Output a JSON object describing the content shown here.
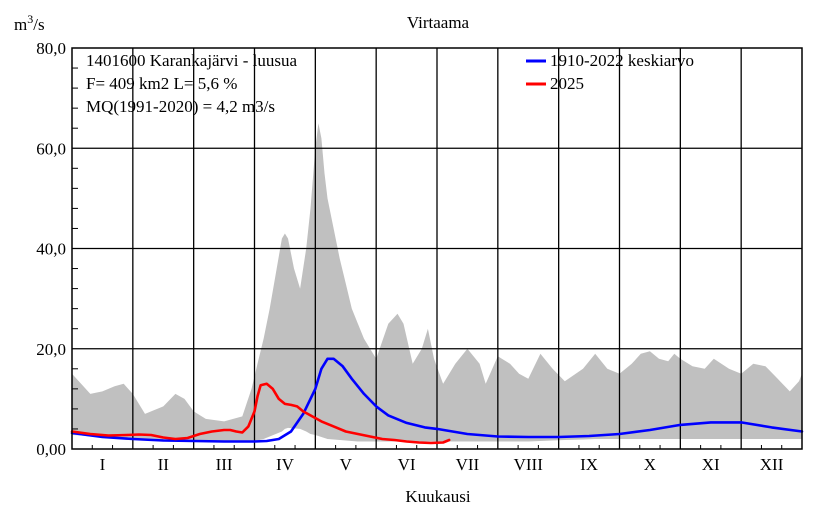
{
  "chart_data": {
    "type": "line",
    "title": "Virtaama",
    "ylabel": "m3/s",
    "xlabel": "Kuukausi",
    "ylim": [
      0,
      80
    ],
    "yticks": [
      0,
      20,
      40,
      60,
      80
    ],
    "ytick_labels": [
      "0,00",
      "20,0",
      "40,0",
      "60,0",
      "80,0"
    ],
    "x_unit": "month",
    "xlim": [
      0,
      12
    ],
    "months": [
      "I",
      "II",
      "III",
      "IV",
      "V",
      "VI",
      "VII",
      "VIII",
      "IX",
      "X",
      "XI",
      "XII"
    ],
    "grid": true,
    "info_lines": [
      "1401600 Karankajärvi - luusua",
      "F=    409 km2 L=  5,6 %",
      "MQ(1991-2020) = 4,2 m3/s"
    ],
    "legend_position": "top-right",
    "colors": {
      "mean": "#0000ff",
      "current": "#ff0000",
      "range": "#c0c0c0"
    },
    "range_band": {
      "name": "",
      "x": [
        0.0,
        0.15,
        0.3,
        0.5,
        0.7,
        0.85,
        1.0,
        1.2,
        1.5,
        1.7,
        1.85,
        2.0,
        2.2,
        2.5,
        2.8,
        2.95,
        3.05,
        3.15,
        3.25,
        3.35,
        3.45,
        3.5,
        3.55,
        3.65,
        3.75,
        3.85,
        3.92,
        4.0,
        4.05,
        4.1,
        4.15,
        4.2,
        4.3,
        4.4,
        4.5,
        4.6,
        4.7,
        4.8,
        5.0,
        5.2,
        5.35,
        5.45,
        5.6,
        5.75,
        5.85,
        5.95,
        6.1,
        6.3,
        6.5,
        6.7,
        6.8,
        7.0,
        7.2,
        7.35,
        7.5,
        7.7,
        7.9,
        8.1,
        8.4,
        8.6,
        8.8,
        9.0,
        9.2,
        9.35,
        9.5,
        9.65,
        9.8,
        9.9,
        10.0,
        10.2,
        10.4,
        10.55,
        10.8,
        11.0,
        11.2,
        11.4,
        11.6,
        11.8,
        11.95,
        12.0
      ],
      "max": [
        15.0,
        13.0,
        11.0,
        11.5,
        12.5,
        13.0,
        11.0,
        7.0,
        8.5,
        11.0,
        10.0,
        7.5,
        6.0,
        5.5,
        6.5,
        12.0,
        17.0,
        22.0,
        28.0,
        35.0,
        42.0,
        43.0,
        42.0,
        36.0,
        32.0,
        40.0,
        48.0,
        60.0,
        65.0,
        62.0,
        55.0,
        50.0,
        44.0,
        38.0,
        33.0,
        28.0,
        25.0,
        22.0,
        18.0,
        25.0,
        27.0,
        25.0,
        17.0,
        20.0,
        24.0,
        18.0,
        13.0,
        17.0,
        20.0,
        17.0,
        13.0,
        18.5,
        17.0,
        15.0,
        14.0,
        19.0,
        16.0,
        13.5,
        16.0,
        19.0,
        16.0,
        15.0,
        17.0,
        19.0,
        19.5,
        18.0,
        17.5,
        19.0,
        18.0,
        16.5,
        16.0,
        18.0,
        16.0,
        15.0,
        17.0,
        16.5,
        14.0,
        11.5,
        13.5,
        15.0
      ],
      "min": [
        2.8,
        2.7,
        2.5,
        2.4,
        2.3,
        2.2,
        2.1,
        2.0,
        1.9,
        1.8,
        1.7,
        1.6,
        1.5,
        1.5,
        1.5,
        1.6,
        1.7,
        2.0,
        2.5,
        3.0,
        3.5,
        4.0,
        4.2,
        4.1,
        4.0,
        3.5,
        3.0,
        2.8,
        2.6,
        2.4,
        2.2,
        2.0,
        1.9,
        1.8,
        1.7,
        1.6,
        1.5,
        1.5,
        1.5,
        1.5,
        1.5,
        1.5,
        1.5,
        1.5,
        1.5,
        1.5,
        1.5,
        1.5,
        1.5,
        1.5,
        1.5,
        1.5,
        1.5,
        1.5,
        1.5,
        1.6,
        1.7,
        1.8,
        1.9,
        2.0,
        2.0,
        2.0,
        2.0,
        2.0,
        2.0,
        2.0,
        2.0,
        2.0,
        2.0,
        2.0,
        2.0,
        2.0,
        2.0,
        2.0,
        2.0,
        2.0,
        2.0,
        2.0,
        2.0,
        2.0
      ]
    },
    "series": [
      {
        "name": "1910-2022 keskiarvo",
        "color": "#0000ff",
        "x": [
          0.0,
          0.5,
          1.0,
          1.5,
          2.0,
          2.5,
          3.0,
          3.2,
          3.4,
          3.6,
          3.8,
          4.0,
          4.1,
          4.2,
          4.3,
          4.45,
          4.6,
          4.8,
          5.0,
          5.2,
          5.5,
          5.8,
          6.0,
          6.5,
          7.0,
          7.5,
          8.0,
          8.5,
          9.0,
          9.5,
          10.0,
          10.5,
          11.0,
          11.5,
          12.0
        ],
        "y": [
          3.2,
          2.4,
          2.0,
          1.7,
          1.6,
          1.5,
          1.5,
          1.6,
          2.0,
          3.5,
          7.0,
          12.0,
          16.0,
          18.0,
          18.0,
          16.5,
          14.0,
          11.0,
          8.5,
          6.7,
          5.2,
          4.3,
          4.0,
          3.0,
          2.5,
          2.4,
          2.4,
          2.6,
          3.0,
          3.8,
          4.8,
          5.3,
          5.3,
          4.3,
          3.5
        ]
      },
      {
        "name": "2025",
        "color": "#ff0000",
        "x": [
          0.0,
          0.3,
          0.6,
          0.9,
          1.1,
          1.3,
          1.5,
          1.7,
          1.9,
          2.1,
          2.3,
          2.5,
          2.6,
          2.7,
          2.8,
          2.9,
          3.0,
          3.05,
          3.1,
          3.2,
          3.3,
          3.4,
          3.5,
          3.6,
          3.7,
          3.8,
          3.95,
          4.1,
          4.3,
          4.5,
          4.7,
          4.9,
          5.1,
          5.3,
          5.5,
          5.7,
          5.9,
          6.1,
          6.2
        ],
        "y": [
          3.5,
          3.0,
          2.7,
          2.8,
          2.9,
          2.8,
          2.3,
          2.0,
          2.2,
          3.0,
          3.5,
          3.8,
          3.8,
          3.5,
          3.3,
          4.5,
          7.5,
          10.5,
          12.7,
          13.0,
          12.0,
          10.0,
          9.0,
          8.8,
          8.5,
          7.5,
          6.5,
          5.5,
          4.5,
          3.5,
          3.0,
          2.5,
          2.0,
          1.8,
          1.5,
          1.3,
          1.2,
          1.3,
          1.8
        ]
      }
    ]
  }
}
